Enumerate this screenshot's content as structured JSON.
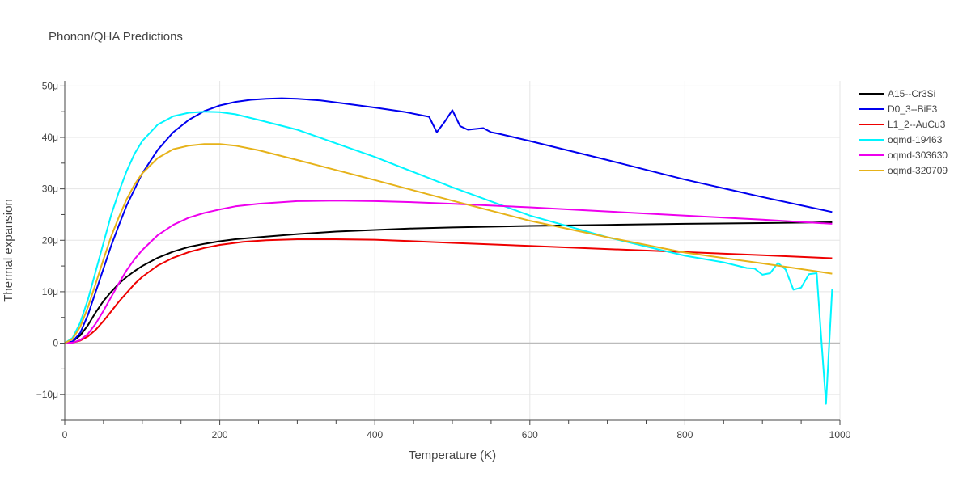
{
  "chart_data": {
    "type": "line",
    "title": "Phonon/QHA Predictions",
    "xlabel": "Temperature (K)",
    "ylabel": "Thermal expansion",
    "xlim": [
      0,
      1000
    ],
    "ylim": [
      -15,
      51
    ],
    "y_unit_suffix": "μ",
    "x_ticks": [
      0,
      200,
      400,
      600,
      800,
      1000
    ],
    "x_tick_labels": [
      "0",
      "200",
      "400",
      "600",
      "800",
      "1000"
    ],
    "y_ticks": [
      -10,
      0,
      10,
      20,
      30,
      40,
      50
    ],
    "y_tick_labels": [
      "−10μ",
      "0",
      "10μ",
      "20μ",
      "30μ",
      "40μ",
      "50μ"
    ],
    "grid": true,
    "legend_position": "right",
    "series": [
      {
        "name": "A15--Cr3Si",
        "color": "#000000",
        "x": [
          0,
          10,
          20,
          30,
          40,
          50,
          60,
          70,
          80,
          90,
          100,
          120,
          140,
          160,
          180,
          200,
          220,
          250,
          300,
          350,
          400,
          450,
          500,
          600,
          700,
          800,
          900,
          990
        ],
        "y": [
          0,
          0.3,
          1.5,
          3.5,
          6,
          8.2,
          10,
          11.6,
          12.9,
          14,
          15,
          16.6,
          17.8,
          18.7,
          19.3,
          19.8,
          20.2,
          20.6,
          21.2,
          21.7,
          22,
          22.3,
          22.5,
          22.8,
          23,
          23.2,
          23.35,
          23.5
        ]
      },
      {
        "name": "D0_3--BiF3",
        "color": "#0000ee",
        "x": [
          0,
          10,
          20,
          30,
          40,
          50,
          60,
          70,
          80,
          100,
          120,
          140,
          160,
          180,
          200,
          220,
          240,
          260,
          280,
          300,
          330,
          360,
          400,
          440,
          470,
          480,
          490,
          500,
          510,
          520,
          540,
          550,
          560,
          600,
          700,
          800,
          900,
          990
        ],
        "y": [
          0,
          0.3,
          2,
          5.5,
          10,
          14.5,
          19,
          23,
          26.8,
          33,
          37.6,
          41,
          43.4,
          45.1,
          46.2,
          46.9,
          47.3,
          47.5,
          47.6,
          47.5,
          47.2,
          46.6,
          45.8,
          44.9,
          44,
          41,
          43,
          45.3,
          42.2,
          41.5,
          41.8,
          41,
          40.7,
          39.3,
          35.6,
          31.8,
          28.4,
          25.5
        ]
      },
      {
        "name": "L1_2--AuCu3",
        "color": "#ee0000",
        "x": [
          0,
          10,
          20,
          30,
          40,
          50,
          60,
          70,
          80,
          90,
          100,
          120,
          140,
          160,
          180,
          200,
          230,
          260,
          300,
          350,
          400,
          450,
          500,
          600,
          700,
          800,
          900,
          990
        ],
        "y": [
          0,
          0.1,
          0.5,
          1.3,
          2.6,
          4.3,
          6.2,
          8.1,
          9.8,
          11.5,
          12.9,
          15.1,
          16.6,
          17.7,
          18.5,
          19.1,
          19.7,
          20,
          20.2,
          20.2,
          20.1,
          19.8,
          19.5,
          18.9,
          18.3,
          17.7,
          17.1,
          16.5
        ]
      },
      {
        "name": "oqmd-19463",
        "color": "#00f5ff",
        "x": [
          0,
          10,
          20,
          30,
          40,
          50,
          60,
          70,
          80,
          90,
          100,
          120,
          140,
          160,
          180,
          200,
          220,
          250,
          300,
          400,
          500,
          600,
          700,
          800,
          850,
          880,
          890,
          900,
          910,
          920,
          930,
          940,
          950,
          960,
          970,
          975,
          982,
          990
        ],
        "y": [
          0,
          1,
          4,
          8.5,
          14,
          19.5,
          25,
          29.5,
          33.5,
          36.8,
          39.3,
          42.5,
          44.1,
          44.8,
          45,
          44.9,
          44.5,
          43.4,
          41.5,
          36.2,
          30.3,
          24.8,
          20.6,
          17,
          15.7,
          14.6,
          14.5,
          13.3,
          13.6,
          15.6,
          14.3,
          10.4,
          10.8,
          13.4,
          13.6,
          3,
          -11.8,
          10.5
        ]
      },
      {
        "name": "oqmd-303630",
        "color": "#ee00ee",
        "x": [
          0,
          10,
          20,
          30,
          40,
          50,
          60,
          70,
          80,
          90,
          100,
          120,
          140,
          160,
          180,
          200,
          220,
          250,
          300,
          350,
          400,
          450,
          500,
          600,
          700,
          800,
          900,
          990
        ],
        "y": [
          0,
          0.1,
          0.6,
          1.8,
          3.8,
          6.3,
          9,
          11.7,
          14.2,
          16.3,
          18.1,
          21,
          23,
          24.4,
          25.3,
          26,
          26.6,
          27.1,
          27.6,
          27.7,
          27.6,
          27.4,
          27.1,
          26.4,
          25.6,
          24.8,
          24,
          23.2
        ]
      },
      {
        "name": "oqmd-320709",
        "color": "#e6b219",
        "x": [
          0,
          10,
          20,
          30,
          40,
          50,
          60,
          70,
          80,
          90,
          100,
          120,
          140,
          160,
          180,
          200,
          220,
          250,
          300,
          400,
          500,
          600,
          700,
          800,
          900,
          990
        ],
        "y": [
          0,
          0.8,
          3.2,
          7,
          11.6,
          16.3,
          20.8,
          24.6,
          28,
          30.8,
          33,
          36,
          37.7,
          38.4,
          38.7,
          38.7,
          38.4,
          37.5,
          35.6,
          31.7,
          27.7,
          23.8,
          20.6,
          17.6,
          15.5,
          13.5
        ]
      }
    ]
  }
}
